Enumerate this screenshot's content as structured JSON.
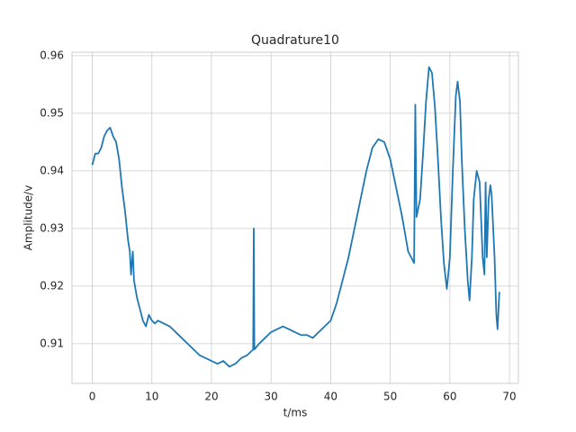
{
  "chart_data": {
    "type": "line",
    "title": "Quadrature10",
    "xlabel": "t/ms",
    "ylabel": "Amplitude/v",
    "color": "#1f77b4",
    "grid": true,
    "xlim": [
      -3.4,
      71.5
    ],
    "ylim": [
      0.9031,
      0.9606
    ],
    "xticks": [
      0,
      10,
      20,
      30,
      40,
      50,
      60,
      70
    ],
    "yticks": [
      0.91,
      0.92,
      0.93,
      0.94,
      0.95,
      0.96
    ],
    "x": [
      0,
      0.5,
      1,
      1.5,
      2,
      2.5,
      3,
      3.5,
      4,
      4.5,
      5,
      5.5,
      6,
      6.3,
      6.5,
      6.8,
      7,
      7.5,
      8,
      8.5,
      9,
      9.5,
      10,
      10.5,
      11,
      12,
      13,
      14,
      15,
      16,
      17,
      18,
      19,
      20,
      21,
      22,
      23,
      24,
      25,
      26,
      27,
      27.1,
      27.2,
      28,
      29,
      30,
      31,
      32,
      33,
      34,
      35,
      36,
      37,
      38,
      39,
      40,
      41,
      42,
      43,
      44,
      45,
      46,
      47,
      48,
      49,
      50,
      51,
      52,
      53,
      54,
      54.2,
      54.4,
      55,
      55.5,
      56,
      56.5,
      57,
      57.5,
      58,
      58.5,
      59,
      59.5,
      60,
      60.5,
      61,
      61.3,
      61.7,
      62,
      62.5,
      63,
      63.3,
      63.7,
      64,
      64.5,
      65,
      65.5,
      65.8,
      66,
      66.2,
      66.5,
      66.8,
      67,
      67.5,
      67.8,
      68,
      68.3
    ],
    "values": [
      0.941,
      0.943,
      0.943,
      0.944,
      0.946,
      0.947,
      0.9475,
      0.946,
      0.945,
      0.942,
      0.937,
      0.933,
      0.928,
      0.926,
      0.922,
      0.926,
      0.921,
      0.918,
      0.916,
      0.914,
      0.913,
      0.915,
      0.914,
      0.9135,
      0.914,
      0.9135,
      0.913,
      0.912,
      0.911,
      0.91,
      0.909,
      0.908,
      0.9075,
      0.907,
      0.9065,
      0.907,
      0.906,
      0.9065,
      0.9075,
      0.908,
      0.909,
      0.93,
      0.909,
      0.91,
      0.911,
      0.912,
      0.9125,
      0.913,
      0.9125,
      0.912,
      0.9115,
      0.9115,
      0.911,
      0.912,
      0.913,
      0.914,
      0.917,
      0.921,
      0.925,
      0.93,
      0.935,
      0.94,
      0.944,
      0.9455,
      0.945,
      0.942,
      0.937,
      0.932,
      0.926,
      0.924,
      0.9515,
      0.932,
      0.935,
      0.943,
      0.952,
      0.958,
      0.957,
      0.951,
      0.942,
      0.932,
      0.924,
      0.9195,
      0.925,
      0.94,
      0.953,
      0.9555,
      0.952,
      0.942,
      0.93,
      0.921,
      0.9175,
      0.925,
      0.935,
      0.94,
      0.938,
      0.925,
      0.922,
      0.938,
      0.925,
      0.935,
      0.9375,
      0.936,
      0.925,
      0.915,
      0.9125,
      0.919
    ]
  }
}
